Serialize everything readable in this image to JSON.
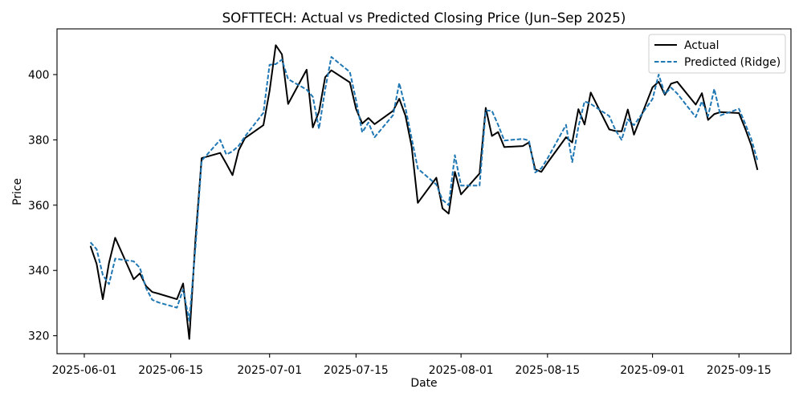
{
  "chart_data": {
    "type": "line",
    "title": "SOFTTECH: Actual vs Predicted Closing Price (Jun–Sep 2025)",
    "xlabel": "Date",
    "ylabel": "Price",
    "x": [
      "2025-06-02",
      "2025-06-03",
      "2025-06-04",
      "2025-06-05",
      "2025-06-06",
      "2025-06-09",
      "2025-06-10",
      "2025-06-11",
      "2025-06-12",
      "2025-06-13",
      "2025-06-16",
      "2025-06-17",
      "2025-06-18",
      "2025-06-19",
      "2025-06-20",
      "2025-06-23",
      "2025-06-24",
      "2025-06-25",
      "2025-06-26",
      "2025-06-27",
      "2025-06-30",
      "2025-07-01",
      "2025-07-02",
      "2025-07-03",
      "2025-07-04",
      "2025-07-07",
      "2025-07-08",
      "2025-07-09",
      "2025-07-10",
      "2025-07-11",
      "2025-07-14",
      "2025-07-15",
      "2025-07-16",
      "2025-07-17",
      "2025-07-18",
      "2025-07-21",
      "2025-07-22",
      "2025-07-23",
      "2025-07-24",
      "2025-07-25",
      "2025-07-28",
      "2025-07-29",
      "2025-07-30",
      "2025-07-31",
      "2025-08-01",
      "2025-08-04",
      "2025-08-05",
      "2025-08-06",
      "2025-08-07",
      "2025-08-08",
      "2025-08-11",
      "2025-08-12",
      "2025-08-13",
      "2025-08-14",
      "2025-08-15",
      "2025-08-18",
      "2025-08-19",
      "2025-08-20",
      "2025-08-21",
      "2025-08-22",
      "2025-08-25",
      "2025-08-26",
      "2025-08-27",
      "2025-08-28",
      "2025-08-29",
      "2025-09-01",
      "2025-09-02",
      "2025-09-03",
      "2025-09-04",
      "2025-09-05",
      "2025-09-08",
      "2025-09-09",
      "2025-09-10",
      "2025-09-11",
      "2025-09-12",
      "2025-09-15",
      "2025-09-16",
      "2025-09-17",
      "2025-09-18"
    ],
    "series": [
      {
        "name": "Actual",
        "color": "#000000",
        "line_style": "solid",
        "values": [
          347.5,
          342.0,
          331.2,
          342.3,
          350.0,
          337.3,
          339.1,
          335.2,
          333.4,
          332.9,
          331.2,
          336.0,
          319.0,
          349.5,
          374.4,
          376.0,
          372.7,
          369.2,
          376.8,
          380.5,
          384.5,
          395.0,
          409.0,
          406.2,
          391.0,
          401.5,
          383.8,
          388.6,
          399.2,
          401.3,
          397.6,
          389.5,
          385.0,
          386.7,
          384.8,
          388.9,
          392.6,
          387.4,
          378.0,
          360.7,
          368.4,
          359.0,
          357.4,
          370.2,
          363.3,
          369.7,
          389.8,
          381.2,
          382.4,
          377.8,
          378.1,
          379.2,
          371.0,
          370.2,
          373.0,
          380.8,
          379.2,
          389.4,
          384.7,
          394.5,
          383.2,
          382.7,
          382.6,
          389.3,
          381.6,
          396.1,
          397.8,
          393.8,
          397.2,
          397.8,
          390.8,
          394.3,
          386.1,
          387.9,
          388.5,
          388.2,
          383.5,
          378.3,
          370.8
        ]
      },
      {
        "name": "Predicted (Ridge)",
        "color": "#1f77b4",
        "line_style": "dashed",
        "values": [
          348.6,
          346.5,
          338.6,
          335.8,
          343.6,
          342.8,
          340.8,
          334.6,
          331.0,
          330.2,
          328.6,
          334.2,
          324.6,
          347.0,
          373.6,
          380.0,
          375.5,
          376.5,
          378.2,
          381.0,
          388.3,
          403.0,
          403.2,
          404.6,
          398.6,
          395.4,
          393.2,
          383.4,
          395.5,
          405.4,
          400.8,
          392.2,
          382.3,
          385.3,
          380.8,
          387.6,
          397.4,
          389.8,
          380.5,
          371.2,
          366.3,
          361.6,
          360.0,
          375.3,
          366.0,
          366.0,
          389.0,
          388.9,
          384.6,
          379.8,
          380.3,
          379.8,
          370.0,
          371.3,
          374.3,
          384.6,
          373.2,
          384.0,
          391.8,
          391.0,
          387.3,
          383.0,
          380.0,
          386.3,
          384.5,
          392.5,
          400.0,
          394.0,
          396.0,
          394.2,
          387.0,
          391.8,
          387.3,
          395.6,
          387.5,
          389.5,
          385.0,
          380.2,
          373.6
        ]
      }
    ],
    "xticks": [
      "2025-06-01",
      "2025-06-15",
      "2025-07-01",
      "2025-07-15",
      "2025-08-01",
      "2025-08-15",
      "2025-09-01",
      "2025-09-15"
    ],
    "yticks": [
      320,
      340,
      360,
      380,
      400
    ],
    "xlim": [
      "2025-05-27T14:00",
      "2025-09-23T10:00"
    ],
    "ylim": [
      314.5,
      414
    ],
    "grid": false,
    "legend": "top-right"
  }
}
